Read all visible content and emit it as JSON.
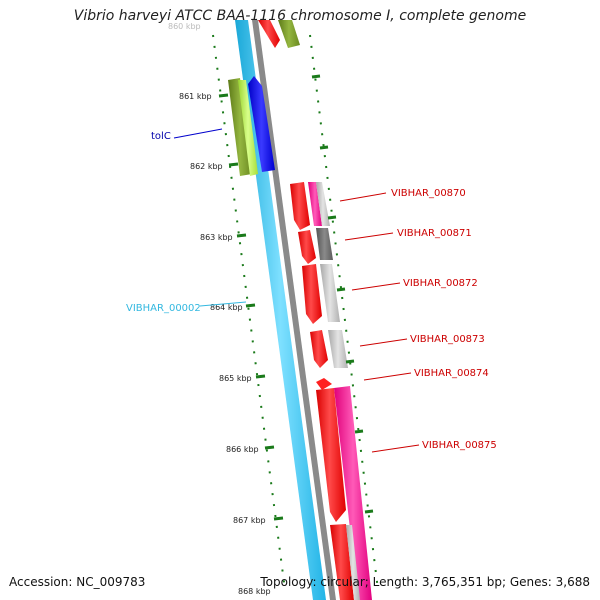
{
  "title": "Vibrio harveyi ATCC BAA-1116 chromosome I, complete genome",
  "footer": {
    "accession": "Accession: NC_009783",
    "summary": "Topology: circular; Length: 3,765,351 bp; Genes: 3,688"
  },
  "colors": {
    "backbone_blue": "#3cc8f0",
    "backbone_grey": "#8a8a8a",
    "gene_red": "#ff0000",
    "gene_pink": "#ff1a9a",
    "gene_grey": "#bdbdbd",
    "gene_darkgrey": "#707070",
    "gene_blue": "#0000ff",
    "gene_olive": "#7a9a2a",
    "gene_lime": "#a8e040",
    "tick_green": "#1a7a1a",
    "label_red": "#cc0000",
    "label_blue": "#0000aa",
    "label_cyan": "#33b8e0"
  },
  "scale_labels": [
    "860 kbp",
    "861 kbp",
    "862 kbp",
    "863 kbp",
    "864 kbp",
    "865 kbp",
    "866 kbp",
    "867 kbp",
    "868 kbp"
  ],
  "gene_labels": [
    {
      "name": "tolC",
      "color": "label_blue"
    },
    {
      "name": "VIBHAR_00002",
      "color": "label_cyan"
    },
    {
      "name": "VIBHAR_00870",
      "color": "label_red"
    },
    {
      "name": "VIBHAR_00871",
      "color": "label_red"
    },
    {
      "name": "VIBHAR_00872",
      "color": "label_red"
    },
    {
      "name": "VIBHAR_00873",
      "color": "label_red"
    },
    {
      "name": "VIBHAR_00874",
      "color": "label_red"
    },
    {
      "name": "VIBHAR_00875",
      "color": "label_red"
    }
  ]
}
